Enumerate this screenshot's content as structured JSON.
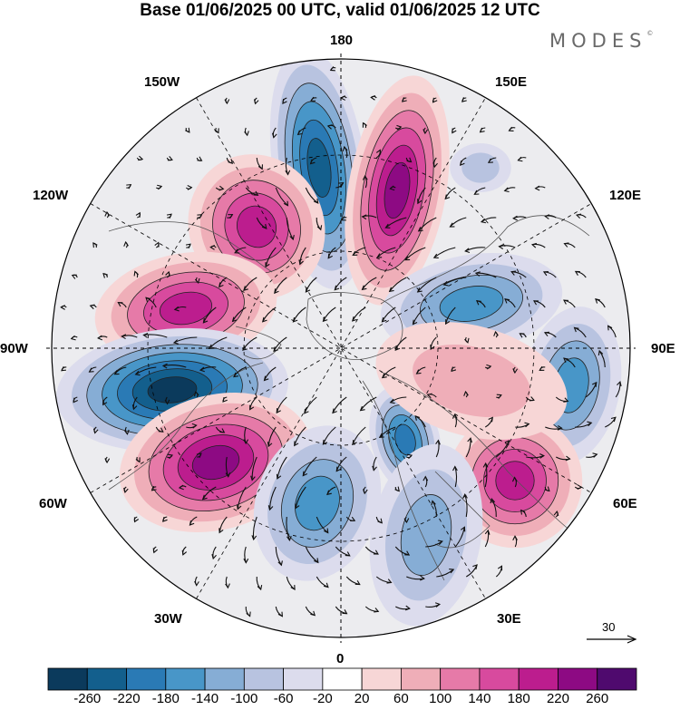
{
  "title": "Base 01/06/2025 00 UTC, valid 01/06/2025 12 UTC",
  "brand": "MODES",
  "brand_mark": "©",
  "longitude_labels": {
    "top": "180",
    "bottom": "0",
    "left": "90W",
    "right": "90E",
    "upper_left_inner": "150W",
    "upper_left_outer": "120W",
    "upper_right_inner": "150E",
    "upper_right_outer": "120E",
    "lower_left_outer": "60W",
    "lower_left_inner": "30W",
    "lower_right_outer": "60E",
    "lower_right_inner": "30E"
  },
  "reference_vector": {
    "label": "30"
  },
  "colorbar": {
    "ticks": [
      "-260",
      "-220",
      "-180",
      "-140",
      "-100",
      "-60",
      "-20",
      "20",
      "60",
      "100",
      "140",
      "180",
      "220",
      "260"
    ],
    "colors": [
      "#0b3a5c",
      "#135f8d",
      "#2a7ab5",
      "#4896c8",
      "#86add5",
      "#b8c3e0",
      "#dcdced",
      "#ffffff",
      "#f7d6d6",
      "#efaeb8",
      "#e67aa8",
      "#d84a9e",
      "#bc1d8e",
      "#8d0a83",
      "#4f0a6e"
    ]
  },
  "anomaly_centers": [
    {
      "sign": "negative",
      "strength": 240
    },
    {
      "sign": "positive",
      "strength": 220
    },
    {
      "sign": "positive",
      "strength": 200
    },
    {
      "sign": "positive",
      "strength": 180
    },
    {
      "sign": "negative",
      "strength": 260
    },
    {
      "sign": "positive",
      "strength": 240
    },
    {
      "sign": "negative",
      "strength": 160
    },
    {
      "sign": "negative",
      "strength": 140
    },
    {
      "sign": "negative",
      "strength": 180
    },
    {
      "sign": "positive",
      "strength": 200
    },
    {
      "sign": "negative",
      "strength": 140
    },
    {
      "sign": "positive",
      "strength": 60
    },
    {
      "sign": "negative",
      "strength": 120
    },
    {
      "sign": "negative",
      "strength": 80
    }
  ]
}
